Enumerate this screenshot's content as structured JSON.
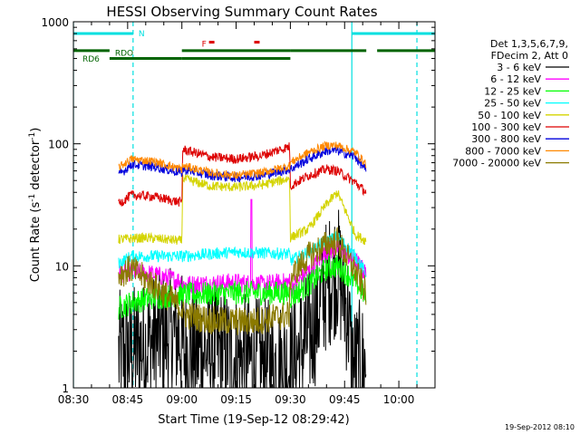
{
  "chart_data": {
    "type": "line",
    "title": "HESSI Observing Summary Count Rates",
    "xlabel": "Start Time (19-Sep-12 08:29:42)",
    "ylabel_main": "Count Rate (s",
    "ylabel_sup1": "-1",
    "ylabel_mid": " detector",
    "ylabel_sup2": "-1",
    "ylabel_end": ")",
    "timestamp": "19-Sep-2012 08:10",
    "y_scale": "log",
    "ylim": [
      1,
      1000
    ],
    "xlim_minutes": [
      0,
      100
    ],
    "x_ticks": [
      {
        "label": "08:30",
        "min": 0
      },
      {
        "label": "08:45",
        "min": 15
      },
      {
        "label": "09:00",
        "min": 30
      },
      {
        "label": "09:15",
        "min": 45
      },
      {
        "label": "09:30",
        "min": 60
      },
      {
        "label": "09:45",
        "min": 75
      },
      {
        "label": "10:00",
        "min": 90
      }
    ],
    "y_ticks": [
      {
        "label": "1",
        "value": 1
      },
      {
        "label": "10",
        "value": 10
      },
      {
        "label": "100",
        "value": 100
      },
      {
        "label": "1000",
        "value": 1000
      }
    ],
    "legend": {
      "placement": "right",
      "header": [
        "Det 1,3,5,6,7,9,",
        "FDecim 2, Att 0"
      ],
      "items": [
        {
          "label": "3 - 6 keV",
          "color": "#000000"
        },
        {
          "label": "6 - 12 keV",
          "color": "#ff00ff"
        },
        {
          "label": "12 - 25 keV",
          "color": "#00ff00"
        },
        {
          "label": "25 - 50 keV",
          "color": "#00ffff"
        },
        {
          "label": "50 - 100 keV",
          "color": "#d4d400"
        },
        {
          "label": "100 - 300 keV",
          "color": "#dd0000"
        },
        {
          "label": "300 - 800 keV",
          "color": "#0000dd"
        },
        {
          "label": "800 - 7000 keV",
          "color": "#ff8800"
        },
        {
          "label": "7000 - 20000 keV",
          "color": "#8b7a00"
        }
      ]
    },
    "flags": [
      {
        "label": "N",
        "color": "#00e0e0",
        "segments": [
          [
            0,
            16.5
          ],
          [
            77,
            100
          ]
        ],
        "level": 800
      },
      {
        "label": "F",
        "color": "#dd0000",
        "segments": [
          [
            37.5,
            39
          ],
          [
            50,
            51.5
          ]
        ],
        "level": 680
      },
      {
        "label": "RDO",
        "color": "#006400",
        "segments": [
          [
            10,
            30
          ],
          [
            30,
            60
          ]
        ],
        "level": 500
      },
      {
        "label": "RD6",
        "color": "#006400",
        "segments": [
          [
            0,
            10
          ],
          [
            30,
            60
          ],
          [
            60,
            81
          ],
          [
            84,
            100
          ]
        ],
        "level": 580
      }
    ],
    "vertical_markers": [
      {
        "color": "#00e0e0",
        "style": "solid",
        "min": 0
      },
      {
        "color": "#00e0e0",
        "style": "dashed",
        "min": 16.5
      },
      {
        "color": "#00e0e0",
        "style": "solid",
        "min": 77
      },
      {
        "color": "#00e0e0",
        "style": "dashed",
        "min": 95
      }
    ],
    "data_window_minutes": [
      12.5,
      81
    ],
    "series": [
      {
        "name": "3 - 6 keV",
        "color": "#000000",
        "noise": 0.55,
        "points": [
          [
            12.5,
            1.8
          ],
          [
            20,
            2.2
          ],
          [
            25,
            2.8
          ],
          [
            30,
            2.6
          ],
          [
            30.2,
            2.0
          ],
          [
            40,
            2.0
          ],
          [
            50,
            1.6
          ],
          [
            59.8,
            1.5
          ],
          [
            60,
            1.5
          ],
          [
            66,
            3.0
          ],
          [
            70,
            7.0
          ],
          [
            73,
            9.5
          ],
          [
            76,
            4.0
          ],
          [
            77,
            1.5
          ],
          [
            81,
            1.5
          ]
        ]
      },
      {
        "name": "6 - 12 keV",
        "color": "#ff00ff",
        "noise": 0.08,
        "points": [
          [
            12.5,
            8.5
          ],
          [
            16,
            9.0
          ],
          [
            22,
            8.5
          ],
          [
            30,
            7.5
          ],
          [
            30.2,
            7.0
          ],
          [
            45,
            7.3
          ],
          [
            52,
            7.0
          ],
          [
            59.8,
            7.4
          ],
          [
            60,
            6.5
          ],
          [
            65,
            9.0
          ],
          [
            70,
            13.0
          ],
          [
            73,
            14.0
          ],
          [
            78,
            11.0
          ],
          [
            81,
            8.5
          ]
        ]
      },
      {
        "name": "12 - 25 keV",
        "color": "#00ff00",
        "noise": 0.1,
        "points": [
          [
            12.5,
            4.5
          ],
          [
            16,
            5.0
          ],
          [
            22,
            5.5
          ],
          [
            30,
            5.8
          ],
          [
            30.2,
            5.8
          ],
          [
            45,
            6.0
          ],
          [
            59.8,
            6.0
          ],
          [
            60,
            5.5
          ],
          [
            65,
            7.0
          ],
          [
            70,
            9.5
          ],
          [
            73,
            10.0
          ],
          [
            78,
            7.5
          ],
          [
            81,
            5.5
          ]
        ]
      },
      {
        "name": "25 - 50 keV",
        "color": "#00ffff",
        "noise": 0.05,
        "points": [
          [
            12.5,
            10.5
          ],
          [
            16,
            12.0
          ],
          [
            22,
            12.0
          ],
          [
            30,
            12.0
          ],
          [
            30.2,
            12.0
          ],
          [
            45,
            13.0
          ],
          [
            59.8,
            12.5
          ],
          [
            60,
            11.0
          ],
          [
            65,
            13.0
          ],
          [
            70,
            16.0
          ],
          [
            73,
            17.5
          ],
          [
            78,
            12.0
          ],
          [
            81,
            8.5
          ]
        ]
      },
      {
        "name": "50 - 100 keV",
        "color": "#d4d400",
        "noise": 0.04,
        "points": [
          [
            12.5,
            16.5
          ],
          [
            20,
            17.0
          ],
          [
            30,
            16.0
          ],
          [
            30.2,
            52.0
          ],
          [
            38,
            45.0
          ],
          [
            45,
            44.0
          ],
          [
            52,
            46.0
          ],
          [
            59.8,
            52.0
          ],
          [
            60,
            17.0
          ],
          [
            65,
            20.0
          ],
          [
            70,
            32.0
          ],
          [
            73,
            40.0
          ],
          [
            76,
            25.0
          ],
          [
            78,
            18.0
          ],
          [
            81,
            16.0
          ]
        ]
      },
      {
        "name": "100 - 300 keV",
        "color": "#dd0000",
        "noise": 0.04,
        "points": [
          [
            12.5,
            32.0
          ],
          [
            16,
            38.0
          ],
          [
            22,
            37.0
          ],
          [
            30,
            33.0
          ],
          [
            30.2,
            90.0
          ],
          [
            38,
            78.0
          ],
          [
            45,
            75.0
          ],
          [
            52,
            80.0
          ],
          [
            59.8,
            95.0
          ],
          [
            60,
            45.0
          ],
          [
            65,
            55.0
          ],
          [
            70,
            62.0
          ],
          [
            73,
            60.0
          ],
          [
            78,
            48.0
          ],
          [
            81,
            40.0
          ]
        ]
      },
      {
        "name": "300 - 800 keV",
        "color": "#0000dd",
        "noise": 0.04,
        "points": [
          [
            12.5,
            55.0
          ],
          [
            16,
            68.0
          ],
          [
            22,
            65.0
          ],
          [
            30,
            58.0
          ],
          [
            30.2,
            62.0
          ],
          [
            38,
            55.0
          ],
          [
            45,
            53.0
          ],
          [
            52,
            55.0
          ],
          [
            59.8,
            62.0
          ],
          [
            60,
            62.0
          ],
          [
            65,
            75.0
          ],
          [
            70,
            88.0
          ],
          [
            73,
            88.0
          ],
          [
            78,
            78.0
          ],
          [
            81,
            60.0
          ]
        ]
      },
      {
        "name": "800 - 7000 keV",
        "color": "#ff8800",
        "noise": 0.035,
        "points": [
          [
            12.5,
            64.0
          ],
          [
            16,
            75.0
          ],
          [
            22,
            72.0
          ],
          [
            30,
            62.0
          ],
          [
            30.2,
            66.0
          ],
          [
            38,
            58.0
          ],
          [
            45,
            55.0
          ],
          [
            52,
            58.0
          ],
          [
            59.8,
            66.0
          ],
          [
            60,
            70.0
          ],
          [
            65,
            85.0
          ],
          [
            70,
            97.0
          ],
          [
            73,
            97.0
          ],
          [
            78,
            85.0
          ],
          [
            81,
            68.0
          ]
        ]
      },
      {
        "name": "7000 - 20000 keV",
        "color": "#8b7a00",
        "noise": 0.12,
        "points": [
          [
            12.5,
            8.5
          ],
          [
            16,
            9.5
          ],
          [
            22,
            7.0
          ],
          [
            30,
            4.5
          ],
          [
            30.2,
            4.0
          ],
          [
            40,
            3.5
          ],
          [
            50,
            3.5
          ],
          [
            59.8,
            4.0
          ],
          [
            60,
            8.0
          ],
          [
            65,
            12.0
          ],
          [
            70,
            15.0
          ],
          [
            73,
            16.0
          ],
          [
            78,
            9.0
          ],
          [
            81,
            6.0
          ]
        ]
      }
    ]
  }
}
